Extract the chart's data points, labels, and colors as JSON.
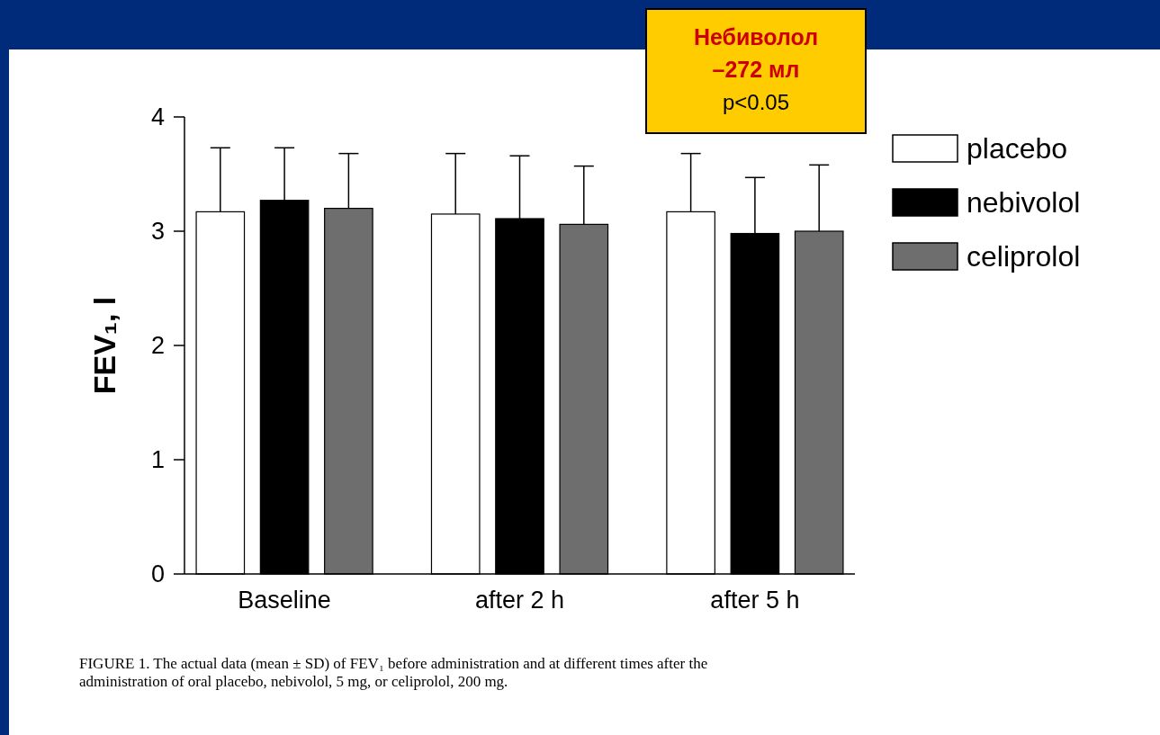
{
  "chart_data": {
    "type": "bar",
    "ylabel": "FEV₁, l",
    "categories": [
      "Baseline",
      "after 2 h",
      "after 5 h"
    ],
    "series": [
      {
        "name": "placebo",
        "color": "#ffffff",
        "values": [
          3.17,
          3.15,
          3.17
        ],
        "errors": [
          0.56,
          0.53,
          0.51
        ]
      },
      {
        "name": "nebivolol",
        "color": "#000000",
        "values": [
          3.27,
          3.11,
          2.98
        ],
        "errors": [
          0.46,
          0.55,
          0.49
        ]
      },
      {
        "name": "celiprolol",
        "color": "#6e6e6e",
        "values": [
          3.2,
          3.06,
          3.0
        ],
        "errors": [
          0.48,
          0.51,
          0.58
        ]
      }
    ],
    "ylim": [
      0,
      4
    ],
    "yticks": [
      0,
      1,
      2,
      3,
      4
    ],
    "legend": "right",
    "grid": false,
    "annotations": [
      "Небиволол",
      "–272 мл",
      "p<0.05",
      "FIGURE 1. The actual data (mean ± SD) of FEV₁ before administration and at different times after the",
      "administration of oral placebo, nebivolol, 5 mg, or celiprolol, 200 mg."
    ]
  }
}
